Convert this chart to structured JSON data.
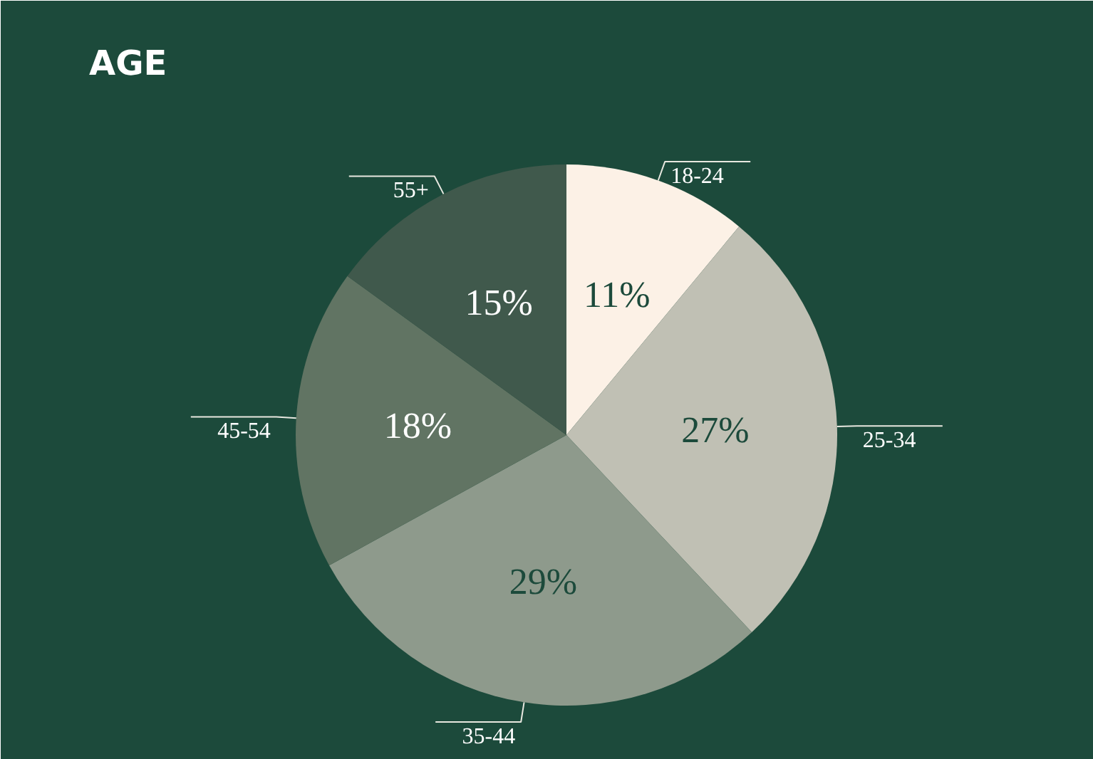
{
  "chart_data": {
    "type": "pie",
    "title": "AGE",
    "categories": [
      "18-24",
      "25-34",
      "35-44",
      "45-54",
      "55+"
    ],
    "values": [
      11,
      27,
      29,
      18,
      15
    ],
    "colors": [
      "#fcf1e6",
      "#c0c0b4",
      "#8e9a8c",
      "#617463",
      "#40594c"
    ],
    "value_labels": [
      "11%",
      "27%",
      "29%",
      "18%",
      "15%"
    ]
  }
}
